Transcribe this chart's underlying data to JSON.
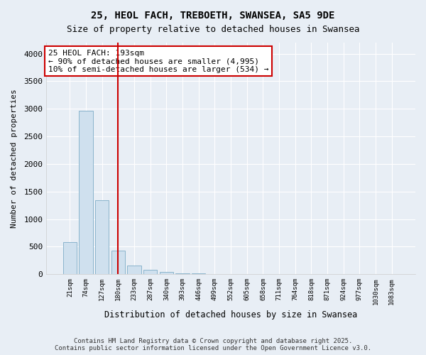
{
  "title1": "25, HEOL FACH, TREBOETH, SWANSEA, SA5 9DE",
  "title2": "Size of property relative to detached houses in Swansea",
  "xlabel": "Distribution of detached houses by size in Swansea",
  "ylabel": "Number of detached properties",
  "categories": [
    "21sqm",
    "74sqm",
    "127sqm",
    "180sqm",
    "233sqm",
    "287sqm",
    "340sqm",
    "393sqm",
    "446sqm",
    "499sqm",
    "552sqm",
    "605sqm",
    "658sqm",
    "711sqm",
    "764sqm",
    "818sqm",
    "871sqm",
    "924sqm",
    "977sqm",
    "1030sqm",
    "1083sqm"
  ],
  "values": [
    580,
    2970,
    1340,
    430,
    160,
    75,
    40,
    20,
    10,
    5,
    3,
    2,
    1,
    0.5,
    0.3,
    0.2,
    0.1,
    0.1,
    0.05,
    0.03,
    0.02
  ],
  "bar_color": "#cfe0ee",
  "bar_edge_color": "#8ab4cc",
  "vline_color": "#cc0000",
  "annotation_text": "25 HEOL FACH: 193sqm\n← 90% of detached houses are smaller (4,995)\n10% of semi-detached houses are larger (534) →",
  "annotation_box_color": "#cc0000",
  "ylim": [
    0,
    4200
  ],
  "yticks": [
    0,
    500,
    1000,
    1500,
    2000,
    2500,
    3000,
    3500,
    4000
  ],
  "footer1": "Contains HM Land Registry data © Crown copyright and database right 2025.",
  "footer2": "Contains public sector information licensed under the Open Government Licence v3.0.",
  "bg_color": "#e8eef5",
  "plot_bg_color": "#e8eef5",
  "title_fontsize": 10,
  "subtitle_fontsize": 9
}
